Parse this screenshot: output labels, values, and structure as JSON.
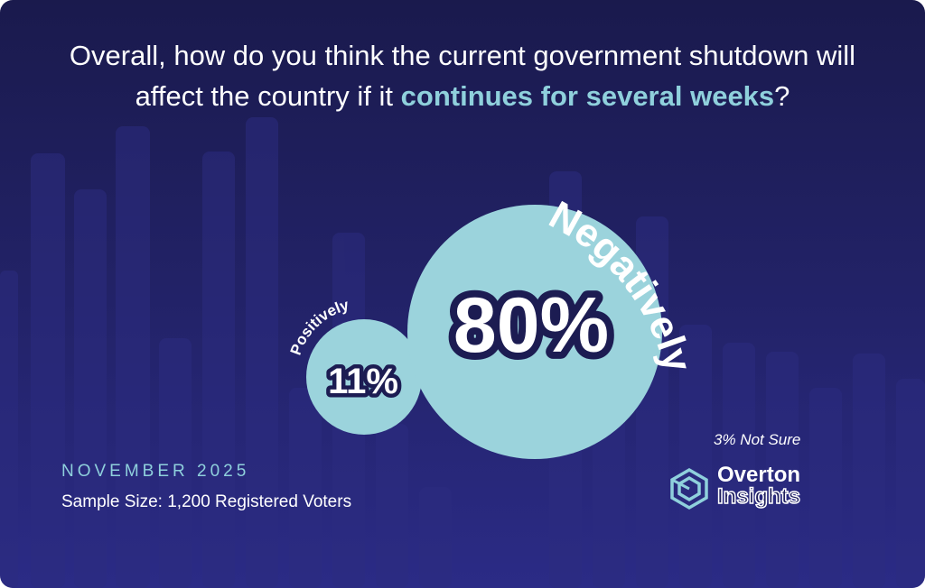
{
  "header": {
    "question_part1": "Overall, how do you think the current government shutdown will affect the country if it ",
    "question_highlight": "continues for several weeks",
    "question_end": "?"
  },
  "chart_data": {
    "type": "bubble",
    "items": [
      {
        "label": "Negatively",
        "value_label": "80%",
        "value": 80
      },
      {
        "label": "Positively",
        "value_label": "11%",
        "value": 11
      }
    ],
    "footnote": "3% Not Sure",
    "not_sure_value": 3
  },
  "footer": {
    "date": "NOVEMBER 2025",
    "sample": "Sample Size:  1,200 Registered Voters"
  },
  "brand": {
    "name": "Overton",
    "sub": "Insights",
    "icon": "hexagon-logo-icon"
  },
  "colors": {
    "background": "#1f1f5e",
    "accent": "#8fd0dc",
    "bubble": "#9bd3dc",
    "text": "#ffffff"
  }
}
